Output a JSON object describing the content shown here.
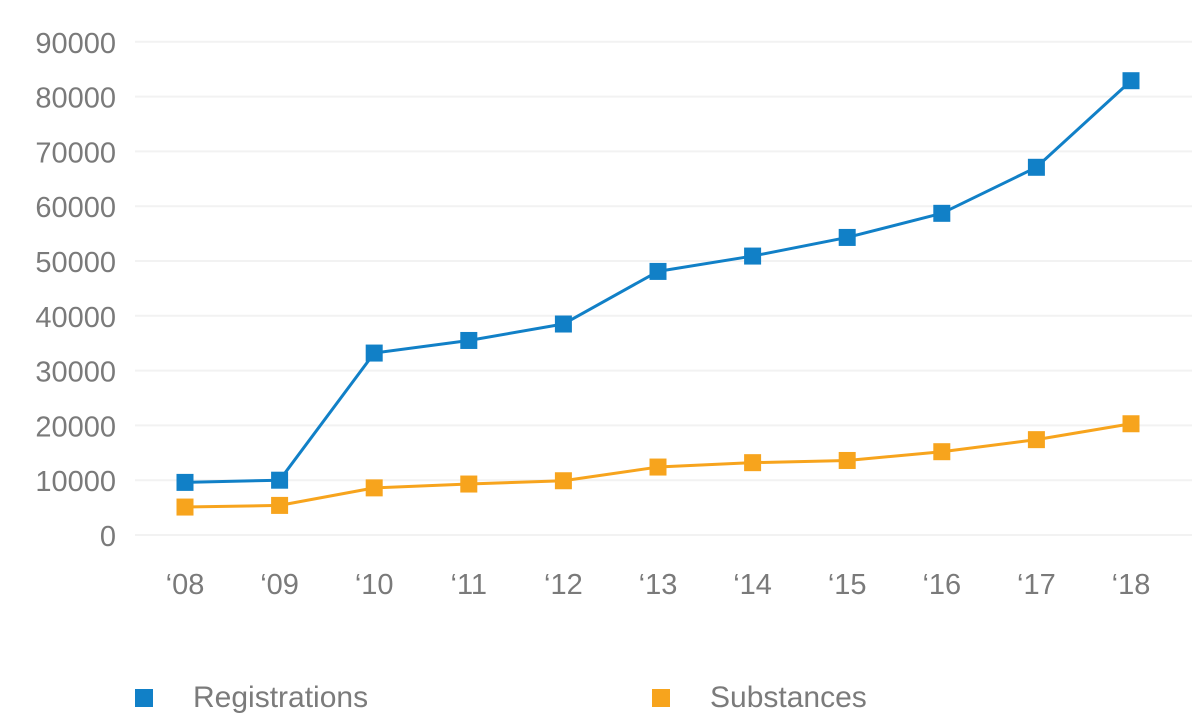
{
  "chart_data": {
    "type": "line",
    "title": "",
    "x_categories": [
      "‘08",
      "‘09",
      "‘10",
      "‘11",
      "‘12",
      "‘13",
      "‘14",
      "‘15",
      "‘16",
      "‘17",
      "‘18"
    ],
    "series": [
      {
        "name": "Registrations",
        "color": "#1180c7",
        "marker": "square",
        "values": [
          9600,
          10000,
          33200,
          35500,
          38500,
          48100,
          50900,
          54300,
          58700,
          67100,
          82900
        ]
      },
      {
        "name": "Substances",
        "color": "#f7a41d",
        "marker": "square",
        "values": [
          5100,
          5400,
          8600,
          9300,
          9900,
          12400,
          13200,
          13600,
          15200,
          17400,
          20300
        ]
      }
    ],
    "ylim": [
      0,
      90000
    ],
    "y_tick_step": 10000,
    "y_tick_labels": [
      "0",
      "10000",
      "20000",
      "30000",
      "40000",
      "50000",
      "60000",
      "70000",
      "80000",
      "90000"
    ],
    "grid": "horizontal-only",
    "gridline_color": "#f2f2f2",
    "axis_text_color": "#7a7a7a",
    "legend_position": "bottom"
  }
}
